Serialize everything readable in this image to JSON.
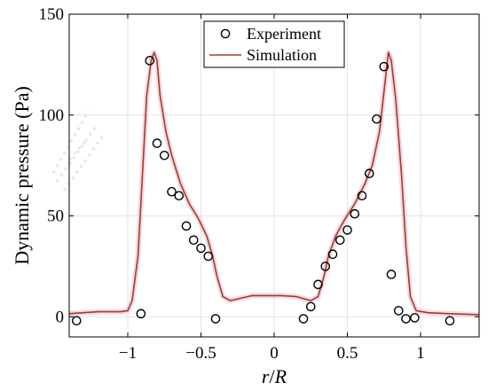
{
  "chart_data": {
    "type": "scatter",
    "xlabel_var": "r",
    "xlabel_sep": "/",
    "xlabel_den": "R",
    "ylabel": "Dynamic pressure (Pa)",
    "xlim": [
      -1.4,
      1.4
    ],
    "ylim": [
      -10,
      150
    ],
    "x_ticks": [
      -1,
      -0.5,
      0,
      0.5,
      1
    ],
    "x_tick_labels": [
      "−1",
      "−0.5",
      "0",
      "0.5",
      "1"
    ],
    "y_ticks": [
      0,
      50,
      100,
      150
    ],
    "y_tick_labels": [
      "0",
      "50",
      "100",
      "150"
    ],
    "grid": true,
    "legend_position": "top-center",
    "series": [
      {
        "name": "Experiment",
        "kind": "markers",
        "color": "#000000",
        "points": [
          [
            -1.35,
            -2
          ],
          [
            -0.91,
            1.5
          ],
          [
            -0.85,
            127
          ],
          [
            -0.8,
            86
          ],
          [
            -0.75,
            80
          ],
          [
            -0.7,
            62
          ],
          [
            -0.65,
            60
          ],
          [
            -0.6,
            45
          ],
          [
            -0.55,
            38
          ],
          [
            -0.5,
            34
          ],
          [
            -0.45,
            30
          ],
          [
            -0.4,
            -1
          ],
          [
            0.2,
            -1
          ],
          [
            0.25,
            5
          ],
          [
            0.3,
            16
          ],
          [
            0.35,
            25
          ],
          [
            0.4,
            31
          ],
          [
            0.45,
            38
          ],
          [
            0.5,
            43
          ],
          [
            0.55,
            51
          ],
          [
            0.6,
            60
          ],
          [
            0.65,
            71
          ],
          [
            0.7,
            98
          ],
          [
            0.75,
            124
          ],
          [
            0.8,
            21
          ],
          [
            0.85,
            3
          ],
          [
            0.9,
            -1
          ],
          [
            0.96,
            -0.5
          ],
          [
            1.2,
            -2
          ]
        ]
      },
      {
        "name": "Simulation",
        "kind": "line",
        "color": "#a0401c",
        "points": [
          [
            -1.4,
            1.5
          ],
          [
            -1.2,
            2.5
          ],
          [
            -1.05,
            2.5
          ],
          [
            -1.0,
            3
          ],
          [
            -0.97,
            8
          ],
          [
            -0.93,
            30
          ],
          [
            -0.9,
            70
          ],
          [
            -0.87,
            110
          ],
          [
            -0.84,
            127
          ],
          [
            -0.82,
            131
          ],
          [
            -0.8,
            127
          ],
          [
            -0.78,
            110
          ],
          [
            -0.74,
            92
          ],
          [
            -0.7,
            80
          ],
          [
            -0.64,
            66
          ],
          [
            -0.58,
            56
          ],
          [
            -0.52,
            49
          ],
          [
            -0.46,
            40
          ],
          [
            -0.42,
            30
          ],
          [
            -0.39,
            20
          ],
          [
            -0.35,
            10
          ],
          [
            -0.3,
            8
          ],
          [
            -0.15,
            10.5
          ],
          [
            0.05,
            10.5
          ],
          [
            0.15,
            10
          ],
          [
            0.25,
            8
          ],
          [
            0.3,
            10
          ],
          [
            0.34,
            20
          ],
          [
            0.37,
            30
          ],
          [
            0.42,
            40
          ],
          [
            0.48,
            48
          ],
          [
            0.55,
            56
          ],
          [
            0.62,
            66
          ],
          [
            0.67,
            75
          ],
          [
            0.72,
            92
          ],
          [
            0.76,
            118
          ],
          [
            0.78,
            131
          ],
          [
            0.8,
            127
          ],
          [
            0.83,
            108
          ],
          [
            0.87,
            70
          ],
          [
            0.9,
            35
          ],
          [
            0.93,
            10
          ],
          [
            0.97,
            3
          ],
          [
            1.05,
            2
          ],
          [
            1.2,
            1.5
          ],
          [
            1.4,
            1
          ]
        ]
      }
    ]
  }
}
